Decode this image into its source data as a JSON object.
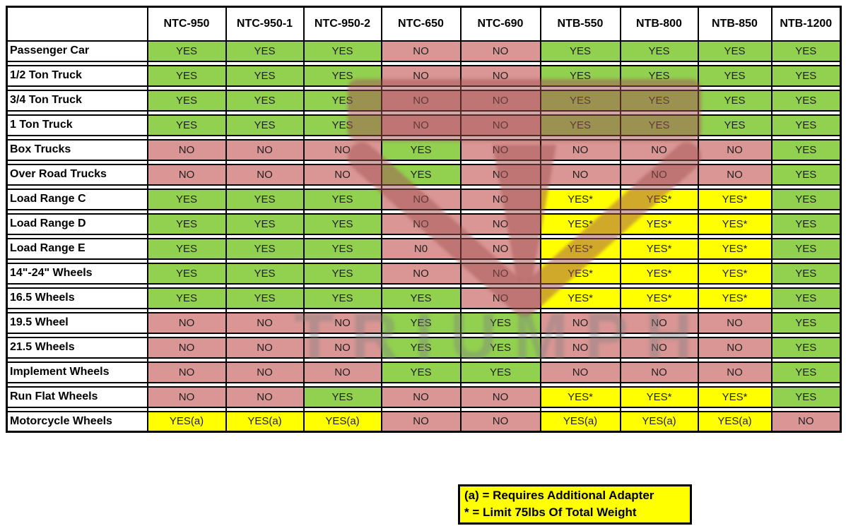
{
  "chart_data": {
    "type": "table",
    "title": "",
    "columns": [
      "NTC-950",
      "NTC-950-1",
      "NTC-950-2",
      "NTC-650",
      "NTC-690",
      "NTB-550",
      "NTB-800",
      "NTB-850",
      "NTB-1200"
    ],
    "rows": [
      {
        "label": "Passenger Car",
        "values": [
          "YES",
          "YES",
          "YES",
          "NO",
          "NO",
          "YES",
          "YES",
          "YES",
          "YES"
        ]
      },
      {
        "label": "1/2 Ton Truck",
        "values": [
          "YES",
          "YES",
          "YES",
          "NO",
          "NO",
          "YES",
          "YES",
          "YES",
          "YES"
        ]
      },
      {
        "label": "3/4 Ton Truck",
        "values": [
          "YES",
          "YES",
          "YES",
          "NO",
          "NO",
          "YES",
          "YES",
          "YES",
          "YES"
        ]
      },
      {
        "label": "1 Ton Truck",
        "values": [
          "YES",
          "YES",
          "YES",
          "NO",
          "NO",
          "YES",
          "YES",
          "YES",
          "YES"
        ]
      },
      {
        "label": "Box Trucks",
        "values": [
          "NO",
          "NO",
          "NO",
          "YES",
          "NO",
          "NO",
          "NO",
          "NO",
          "YES"
        ]
      },
      {
        "label": "Over Road Trucks",
        "values": [
          "NO",
          "NO",
          "NO",
          "YES",
          "NO",
          "NO",
          "NO",
          "NO",
          "YES"
        ]
      },
      {
        "label": "Load Range C",
        "values": [
          "YES",
          "YES",
          "YES",
          "NO",
          "NO",
          "YES*",
          "YES*",
          "YES*",
          "YES"
        ]
      },
      {
        "label": "Load Range D",
        "values": [
          "YES",
          "YES",
          "YES",
          "NO",
          "NO",
          "YES*",
          "YES*",
          "YES*",
          "YES"
        ]
      },
      {
        "label": "Load Range E",
        "values": [
          "YES",
          "YES",
          "YES",
          "N0",
          "NO",
          "YES*",
          "YES*",
          "YES*",
          "YES"
        ]
      },
      {
        "label": "14\"-24\" Wheels",
        "values": [
          "YES",
          "YES",
          "YES",
          "NO",
          "NO",
          "YES*",
          "YES*",
          "YES*",
          "YES"
        ]
      },
      {
        "label": "16.5 Wheels",
        "values": [
          "YES",
          "YES",
          "YES",
          "YES",
          "NO",
          "YES*",
          "YES*",
          "YES*",
          "YES"
        ]
      },
      {
        "label": "19.5 Wheel",
        "values": [
          "NO",
          "NO",
          "NO",
          "YES",
          "YES",
          "NO",
          "NO",
          "NO",
          "YES"
        ]
      },
      {
        "label": "21.5 Wheels",
        "values": [
          "NO",
          "NO",
          "NO",
          "YES",
          "YES",
          "NO",
          "NO",
          "NO",
          "YES"
        ]
      },
      {
        "label": "Implement Wheels",
        "values": [
          "NO",
          "NO",
          "NO",
          "YES",
          "YES",
          "NO",
          "NO",
          "NO",
          "YES"
        ]
      },
      {
        "label": "Run Flat Wheels",
        "values": [
          "NO",
          "NO",
          "YES",
          "NO",
          "NO",
          "YES*",
          "YES*",
          "YES*",
          "YES"
        ]
      },
      {
        "label": "Motorcycle Wheels",
        "values": [
          "YES(a)",
          "YES(a)",
          "YES(a)",
          "NO",
          "NO",
          "YES(a)",
          "YES(a)",
          "YES(a)",
          "NO"
        ]
      }
    ],
    "notes": [
      "(a) = Requires Additional Adapter",
      "* = Limit 75lbs Of Total Weight"
    ],
    "layout_hints": {
      "grid": true,
      "legend_position": "bottom-right"
    }
  },
  "colors": {
    "yes_green": "#92D050",
    "no_red": "#D99694",
    "conditional_yellow": "#FFFF00",
    "legend_background": "#FFFF00",
    "border_black": "#000000"
  },
  "watermark": {
    "text": "TRIUMPH"
  }
}
